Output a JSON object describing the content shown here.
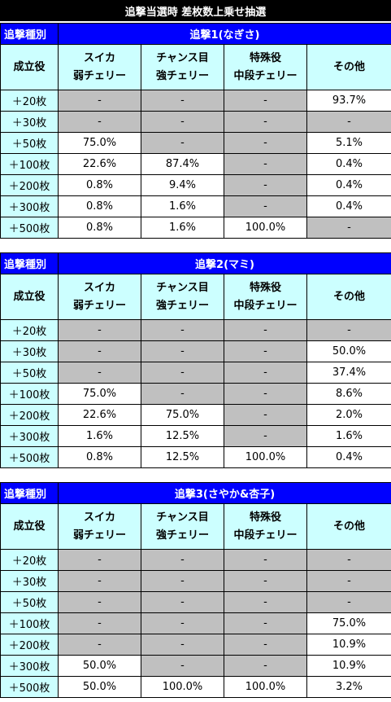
{
  "page_title": "追撃当選時 差枚数上乗せ抽選",
  "section_kind_label": "追撃種別",
  "role_header": "成立役",
  "column_headers": [
    {
      "line1": "スイカ",
      "line2": "弱チェリー"
    },
    {
      "line1": "チャンス目",
      "line2": "強チェリー"
    },
    {
      "line1": "特殊役",
      "line2": "中段チェリー"
    },
    {
      "line1": "その他",
      "line2": ""
    }
  ],
  "sections": [
    {
      "title": "追撃1(なぎさ)",
      "rows": [
        {
          "label": "＋20枚",
          "values": [
            "-",
            "-",
            "-",
            "93.7%"
          ]
        },
        {
          "label": "＋30枚",
          "values": [
            "-",
            "-",
            "-",
            "-"
          ]
        },
        {
          "label": "＋50枚",
          "values": [
            "75.0%",
            "-",
            "-",
            "5.1%"
          ]
        },
        {
          "label": "＋100枚",
          "values": [
            "22.6%",
            "87.4%",
            "-",
            "0.4%"
          ]
        },
        {
          "label": "＋200枚",
          "values": [
            "0.8%",
            "9.4%",
            "-",
            "0.4%"
          ]
        },
        {
          "label": "＋300枚",
          "values": [
            "0.8%",
            "1.6%",
            "-",
            "0.4%"
          ]
        },
        {
          "label": "＋500枚",
          "values": [
            "0.8%",
            "1.6%",
            "100.0%",
            "-"
          ]
        }
      ]
    },
    {
      "title": "追撃2(マミ)",
      "rows": [
        {
          "label": "＋20枚",
          "values": [
            "-",
            "-",
            "-",
            "-"
          ]
        },
        {
          "label": "＋30枚",
          "values": [
            "-",
            "-",
            "-",
            "50.0%"
          ]
        },
        {
          "label": "＋50枚",
          "values": [
            "-",
            "-",
            "-",
            "37.4%"
          ]
        },
        {
          "label": "＋100枚",
          "values": [
            "75.0%",
            "-",
            "-",
            "8.6%"
          ]
        },
        {
          "label": "＋200枚",
          "values": [
            "22.6%",
            "75.0%",
            "-",
            "2.0%"
          ]
        },
        {
          "label": "＋300枚",
          "values": [
            "1.6%",
            "12.5%",
            "-",
            "1.6%"
          ]
        },
        {
          "label": "＋500枚",
          "values": [
            "0.8%",
            "12.5%",
            "100.0%",
            "0.4%"
          ]
        }
      ]
    },
    {
      "title": "追撃3(さやか&杏子)",
      "rows": [
        {
          "label": "＋20枚",
          "values": [
            "-",
            "-",
            "-",
            "-"
          ]
        },
        {
          "label": "＋30枚",
          "values": [
            "-",
            "-",
            "-",
            "-"
          ]
        },
        {
          "label": "＋50枚",
          "values": [
            "-",
            "-",
            "-",
            "-"
          ]
        },
        {
          "label": "＋100枚",
          "values": [
            "-",
            "-",
            "-",
            "75.0%"
          ]
        },
        {
          "label": "＋200枚",
          "values": [
            "-",
            "-",
            "-",
            "10.9%"
          ]
        },
        {
          "label": "＋300枚",
          "values": [
            "50.0%",
            "-",
            "-",
            "10.9%"
          ]
        },
        {
          "label": "＋500枚",
          "values": [
            "50.0%",
            "100.0%",
            "100.0%",
            "3.2%"
          ]
        }
      ]
    }
  ],
  "colors": {
    "header_blue": "#0000ff",
    "label_cyan": "#ccffff",
    "empty_gray": "#c0c0c0",
    "title_black": "#000000"
  }
}
